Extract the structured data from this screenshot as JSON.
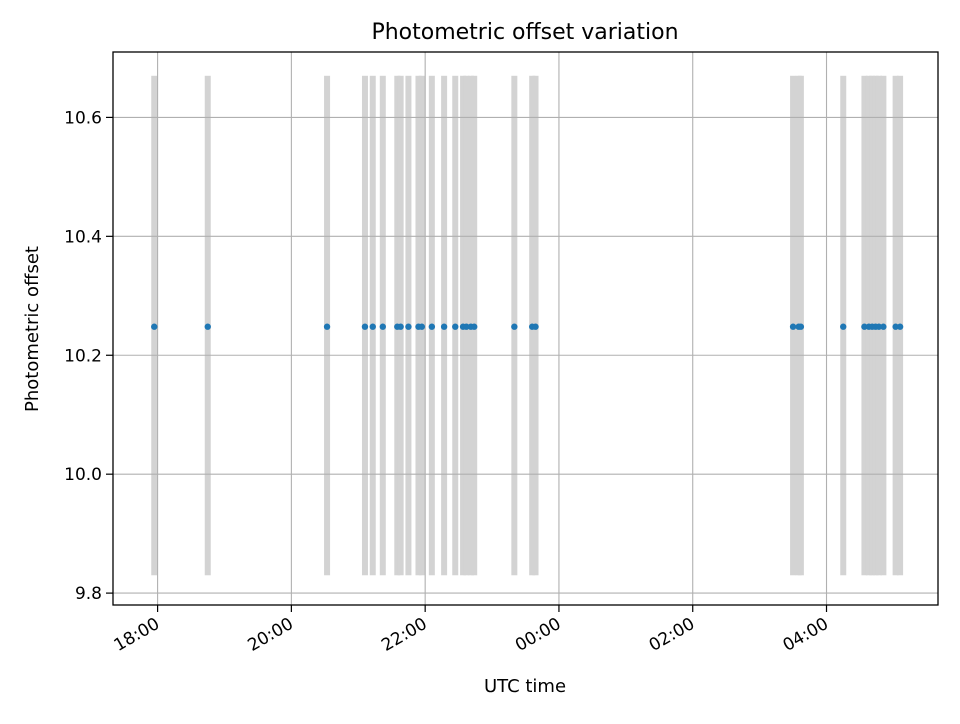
{
  "chart_data": {
    "type": "scatter",
    "title": "Photometric offset variation",
    "xlabel": "UTC time",
    "ylabel": "Photometric offset",
    "grid": true,
    "legend": "none",
    "x_type": "time",
    "xlim": [
      "17:20",
      "05:40"
    ],
    "ylim": [
      9.78,
      10.71
    ],
    "x_ticks": [
      "18:00",
      "20:00",
      "22:00",
      "00:00",
      "02:00",
      "04:00"
    ],
    "y_ticks": [
      "9.8",
      "10.0",
      "10.2",
      "10.4",
      "10.6"
    ],
    "point_color": "#1f77b4",
    "band_color": "#d3d3d3",
    "band_range": [
      9.83,
      10.67
    ],
    "series": [
      {
        "x": [
          "17:57",
          "18:45",
          "20:32",
          "21:06",
          "21:13",
          "21:22",
          "21:35",
          "21:38",
          "21:45",
          "21:54",
          "21:57",
          "22:06",
          "22:17",
          "22:27",
          "22:34",
          "22:37",
          "22:41",
          "22:44",
          "23:20",
          "23:36",
          "23:39",
          "03:30",
          "03:35",
          "03:37",
          "04:15",
          "04:34",
          "04:38",
          "04:41",
          "04:44",
          "04:47",
          "04:51",
          "05:02",
          "05:06"
        ],
        "y": [
          10.248,
          10.248,
          10.248,
          10.248,
          10.248,
          10.248,
          10.248,
          10.248,
          10.248,
          10.248,
          10.248,
          10.248,
          10.248,
          10.248,
          10.248,
          10.248,
          10.248,
          10.248,
          10.248,
          10.248,
          10.248,
          10.248,
          10.248,
          10.248,
          10.248,
          10.248,
          10.248,
          10.248,
          10.248,
          10.248,
          10.248,
          10.248,
          10.248
        ]
      }
    ]
  }
}
